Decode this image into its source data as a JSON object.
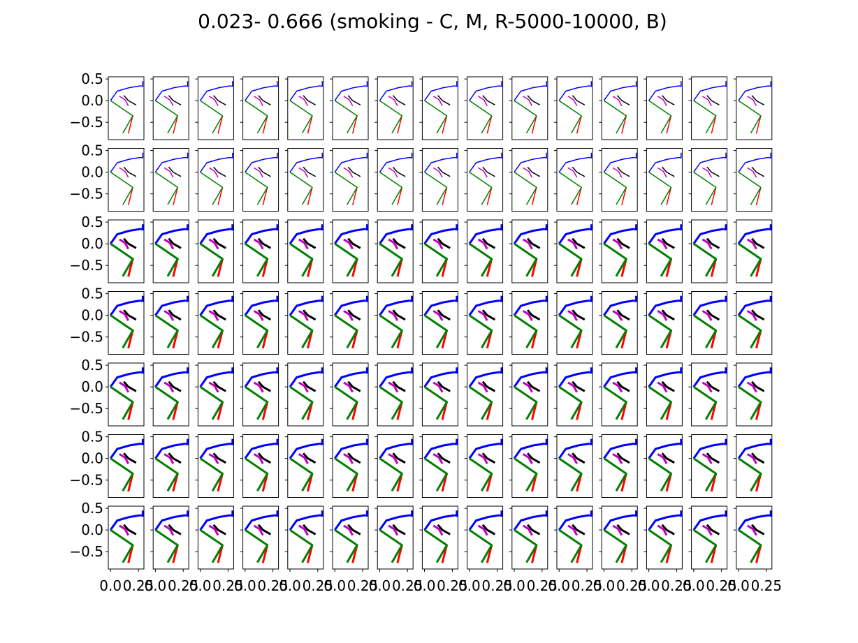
{
  "chart_data": {
    "type": "line",
    "title": "0.023- 0.666 (smoking - C, M, R-5000-10000, B)",
    "rows": 7,
    "cols": 15,
    "xlim": [
      -0.02,
      0.3
    ],
    "ylim": [
      -0.9,
      0.55
    ],
    "y_ticks": [
      0.5,
      0.0,
      -0.5
    ],
    "y_tick_labels": [
      "0.5",
      "0.0",
      "−0.5"
    ],
    "x_ticks": [
      0.0,
      0.25
    ],
    "x_tick_labels": [
      "0.0",
      "0.25"
    ],
    "grid": false,
    "legend": "none",
    "row_line_weights": [
      1.5,
      1.5,
      3,
      3,
      3,
      3,
      3
    ],
    "series": [
      {
        "color": "#0000ff",
        "segments": [
          [
            [
              0.0,
              0.0
            ],
            [
              0.06,
              0.22
            ],
            [
              0.17,
              0.3
            ],
            [
              0.27,
              0.34
            ]
          ],
          [
            [
              0.27,
              0.34
            ],
            [
              0.29,
              0.33
            ],
            [
              0.29,
              0.45
            ]
          ]
        ]
      },
      {
        "color": "#bf00bf",
        "segments": [
          [
            [
              0.08,
              0.1
            ],
            [
              0.13,
              0.02
            ],
            [
              0.16,
              -0.12
            ]
          ]
        ]
      },
      {
        "color": "#000000",
        "segments": [
          [
            [
              0.12,
              0.12
            ],
            [
              0.16,
              0.0
            ],
            [
              0.23,
              -0.1
            ]
          ]
        ]
      },
      {
        "color": "#ff0000",
        "segments": [
          [
            [
              0.2,
              -0.35
            ],
            [
              0.18,
              -0.55
            ],
            [
              0.16,
              -0.76
            ]
          ]
        ]
      },
      {
        "color": "#007f00",
        "segments": [
          [
            [
              0.0,
              0.0
            ],
            [
              0.2,
              -0.35
            ],
            [
              0.11,
              -0.75
            ]
          ]
        ]
      }
    ]
  }
}
